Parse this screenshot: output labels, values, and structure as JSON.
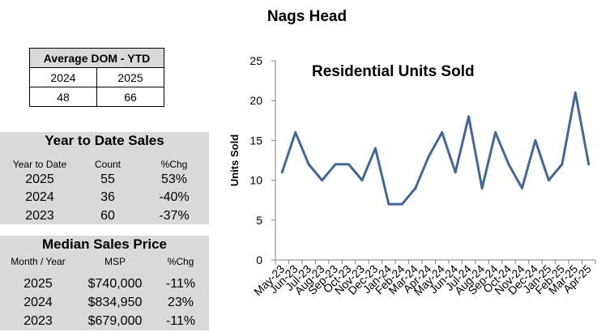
{
  "page_title": "Nags Head",
  "dom_table": {
    "title": "Average DOM - YTD",
    "years": [
      "2024",
      "2025"
    ],
    "values": [
      "48",
      "66"
    ]
  },
  "ytd": {
    "title": "Year to Date Sales",
    "headers": [
      "Year to Date",
      "Count",
      "%Chg"
    ],
    "rows": [
      [
        "2025",
        "55",
        "53%"
      ],
      [
        "2024",
        "36",
        "-40%"
      ],
      [
        "2023",
        "60",
        "-37%"
      ]
    ]
  },
  "msp": {
    "title": "Median Sales Price",
    "headers": [
      "Month / Year",
      "MSP",
      "%Chg"
    ],
    "rows": [
      [
        "2025",
        "$740,000",
        "-11%"
      ],
      [
        "2024",
        "$834,950",
        "23%"
      ],
      [
        "2023",
        "$679,000",
        "-11%"
      ]
    ]
  },
  "chart_data": {
    "type": "line",
    "title": "Residential Units Sold",
    "ylabel": "Units Sold",
    "xlabel": "",
    "ylim": [
      0,
      25
    ],
    "yticks": [
      0,
      5,
      10,
      15,
      20,
      25
    ],
    "grid": false,
    "line_color": "#44679a",
    "categories": [
      "May-23",
      "Jun-23",
      "Jul-23",
      "Aug-23",
      "Sep-23",
      "Oct-23",
      "Nov-23",
      "Dec-23",
      "Jan-24",
      "Feb-24",
      "Mar-24",
      "Apr-24",
      "May-24",
      "Jun-24",
      "Jul-24",
      "Aug-24",
      "Sep-24",
      "Oct-24",
      "Nov-24",
      "Dec-24",
      "Jan-25",
      "Feb-25",
      "Mar-25",
      "Apr-25"
    ],
    "values": [
      11,
      16,
      12,
      10,
      12,
      12,
      10,
      14,
      7,
      7,
      9,
      13,
      16,
      11,
      18,
      9,
      16,
      12,
      9,
      15,
      10,
      12,
      21,
      12
    ]
  }
}
